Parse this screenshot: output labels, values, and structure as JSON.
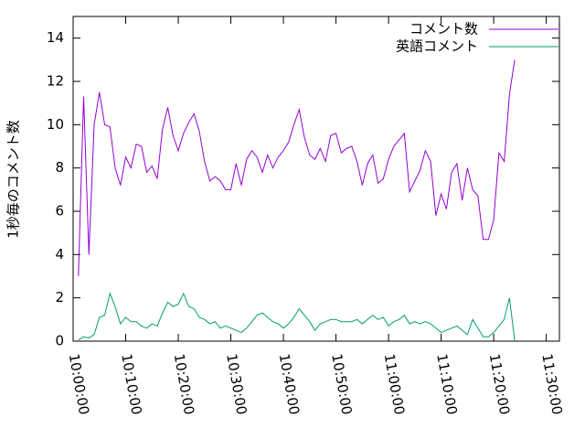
{
  "chart_data": {
    "type": "line",
    "ylabel": "1秒毎のコメント数",
    "x": [
      "10:01:00",
      "10:02:00",
      "10:03:00",
      "10:04:00",
      "10:05:00",
      "10:06:00",
      "10:07:00",
      "10:08:00",
      "10:09:00",
      "10:10:00",
      "10:11:00",
      "10:12:00",
      "10:13:00",
      "10:14:00",
      "10:15:00",
      "10:16:00",
      "10:17:00",
      "10:18:00",
      "10:19:00",
      "10:20:00",
      "10:21:00",
      "10:22:00",
      "10:23:00",
      "10:24:00",
      "10:25:00",
      "10:26:00",
      "10:27:00",
      "10:28:00",
      "10:29:00",
      "10:30:00",
      "10:31:00",
      "10:32:00",
      "10:33:00",
      "10:34:00",
      "10:35:00",
      "10:36:00",
      "10:37:00",
      "10:38:00",
      "10:39:00",
      "10:40:00",
      "10:41:00",
      "10:42:00",
      "10:43:00",
      "10:44:00",
      "10:45:00",
      "10:46:00",
      "10:47:00",
      "10:48:00",
      "10:49:00",
      "10:50:00",
      "10:51:00",
      "10:52:00",
      "10:53:00",
      "10:54:00",
      "10:55:00",
      "10:56:00",
      "10:57:00",
      "10:58:00",
      "10:59:00",
      "11:00:00",
      "11:01:00",
      "11:02:00",
      "11:03:00",
      "11:04:00",
      "11:05:00",
      "11:06:00",
      "11:07:00",
      "11:08:00",
      "11:09:00",
      "11:10:00",
      "11:11:00",
      "11:12:00",
      "11:13:00",
      "11:14:00",
      "11:15:00",
      "11:16:00",
      "11:17:00",
      "11:18:00",
      "11:19:00",
      "11:20:00",
      "11:21:00",
      "11:22:00",
      "11:23:00",
      "11:24:00"
    ],
    "series": [
      {
        "name": "コメント数",
        "color": "#9400d3",
        "values": [
          3,
          11.3,
          4.0,
          10,
          11.5,
          10,
          9.9,
          8,
          7.2,
          8.5,
          8,
          9.1,
          9,
          7.8,
          8.1,
          7.5,
          9.8,
          10.8,
          9.5,
          8.8,
          9.6,
          10.1,
          10.5,
          9.7,
          8.3,
          7.4,
          7.6,
          7.4,
          7,
          7,
          8.2,
          7.2,
          8.4,
          8.8,
          8.5,
          7.8,
          8.6,
          8,
          8.5,
          8.8,
          9.2,
          10,
          10.7,
          9.4,
          8.6,
          8.4,
          8.9,
          8.3,
          9.5,
          9.6,
          8.7,
          8.9,
          9,
          8.3,
          7.2,
          8.2,
          8.6,
          7.3,
          7.5,
          8.4,
          9,
          9.3,
          9.6,
          6.9,
          7.4,
          7.9,
          8.8,
          8.3,
          5.8,
          6.8,
          6.1,
          7.8,
          8.2,
          6.5,
          8,
          7,
          6.7,
          4.7,
          4.7,
          5.6,
          8.7,
          8.3,
          11.4,
          13
        ]
      },
      {
        "name": "英語コメント",
        "color": "#009e73",
        "values": [
          0.05,
          0.2,
          0.15,
          0.3,
          1.1,
          1.2,
          2.2,
          1.6,
          0.8,
          1.1,
          0.9,
          0.9,
          0.7,
          0.6,
          0.8,
          0.7,
          1.3,
          1.8,
          1.6,
          1.7,
          2.2,
          1.6,
          1.5,
          1.1,
          1,
          0.8,
          0.9,
          0.6,
          0.7,
          0.6,
          0.5,
          0.4,
          0.6,
          0.9,
          1.2,
          1.3,
          1.1,
          0.9,
          0.8,
          0.6,
          0.8,
          1.1,
          1.5,
          1.2,
          0.9,
          0.5,
          0.8,
          0.9,
          1,
          1,
          0.9,
          0.9,
          0.9,
          1,
          0.8,
          1,
          1.2,
          1,
          1.1,
          0.7,
          0.9,
          1,
          1.2,
          0.8,
          0.9,
          0.8,
          0.9,
          0.8,
          0.6,
          0.4,
          0.5,
          0.6,
          0.7,
          0.5,
          0.3,
          1,
          0.6,
          0.2,
          0.2,
          0.4,
          0.7,
          1,
          2,
          0
        ]
      }
    ],
    "xlim": [
      "10:00:00",
      "11:32:30"
    ],
    "xticks": [
      "10:00:00",
      "10:10:00",
      "10:20:00",
      "10:30:00",
      "10:40:00",
      "10:50:00",
      "11:00:00",
      "11:10:00",
      "11:20:00",
      "11:30:00"
    ],
    "ylim": [
      0,
      15
    ],
    "yticks": [
      0,
      2,
      4,
      6,
      8,
      10,
      12,
      14
    ],
    "legend": "top-right"
  }
}
